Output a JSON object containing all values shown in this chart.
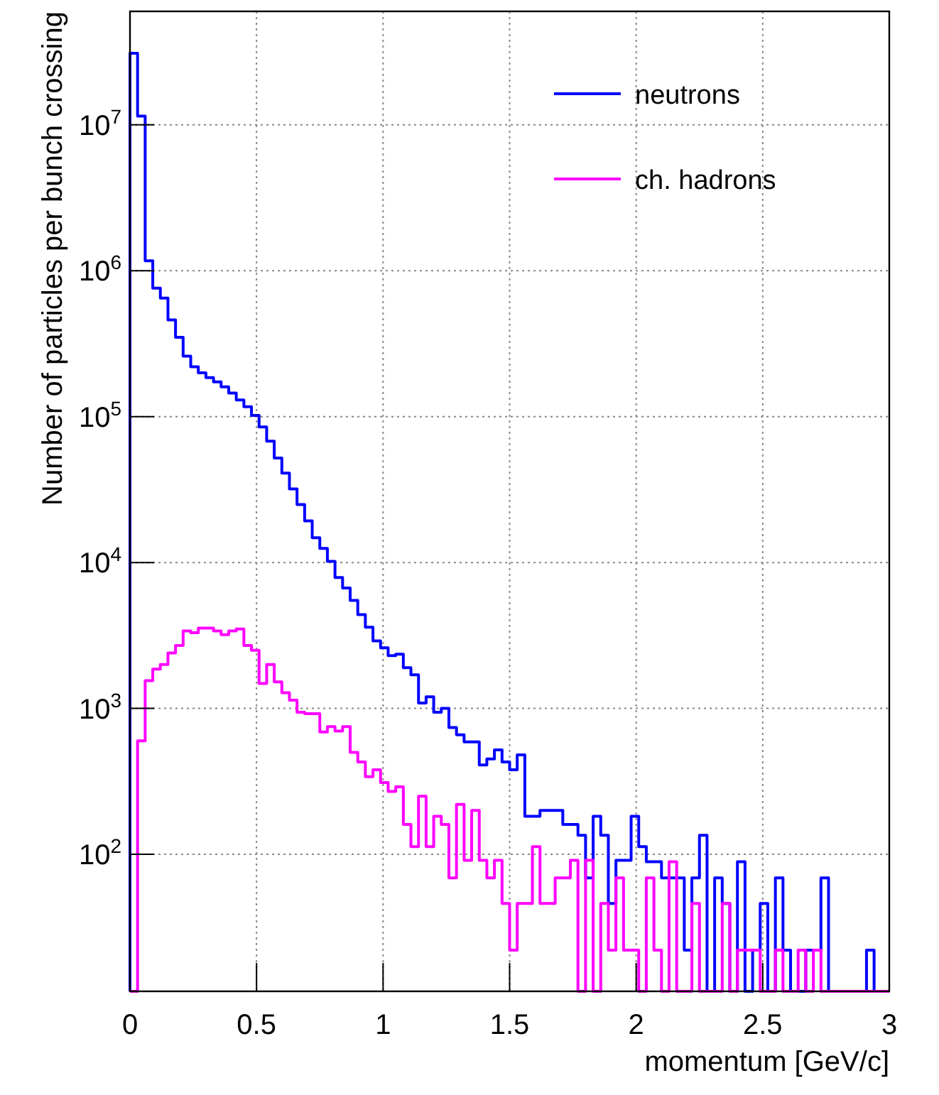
{
  "chart_data": {
    "type": "histogram",
    "xlabel": "momentum [GeV/c]",
    "ylabel": "Number of particles per bunch crossing",
    "bins": [
      0,
      0.03,
      0.06,
      0.09,
      0.12,
      0.15,
      0.18,
      0.21,
      0.24,
      0.27,
      0.3,
      0.33,
      0.36,
      0.39,
      0.42,
      0.45,
      0.48,
      0.51,
      0.54,
      0.57,
      0.6,
      0.63,
      0.66,
      0.69,
      0.72,
      0.75,
      0.78,
      0.81,
      0.84,
      0.87,
      0.9,
      0.93,
      0.96,
      0.99,
      1.02,
      1.05,
      1.08,
      1.11,
      1.14,
      1.17,
      1.2,
      1.23,
      1.26,
      1.29,
      1.32,
      1.35,
      1.38,
      1.41,
      1.44,
      1.47,
      1.5,
      1.53,
      1.56,
      1.59,
      1.62,
      1.65,
      1.68,
      1.71,
      1.74,
      1.77,
      1.8,
      1.83,
      1.86,
      1.89,
      1.92,
      1.95,
      1.98,
      2.01,
      2.04,
      2.07,
      2.1,
      2.13,
      2.16,
      2.19,
      2.22,
      2.25,
      2.28,
      2.31,
      2.34,
      2.37,
      2.4,
      2.43,
      2.46,
      2.49,
      2.52,
      2.55,
      2.58,
      2.61,
      2.64,
      2.67,
      2.7,
      2.73,
      2.76,
      2.79,
      2.82,
      2.85,
      2.88,
      2.91,
      2.94,
      2.97,
      3
    ],
    "series": [
      {
        "name": "neutrons",
        "color": "#0000ff",
        "values": [
          31000000,
          11500000,
          1170000,
          760000,
          650000,
          460000,
          350000,
          260000,
          220000,
          200000,
          185000,
          173000,
          160000,
          145000,
          130000,
          117000,
          102000,
          85000,
          68000,
          52000,
          41000,
          32000,
          25000,
          19300,
          14800,
          12500,
          10200,
          7900,
          6700,
          5500,
          4400,
          3600,
          2900,
          2600,
          2300,
          2350,
          1900,
          1700,
          1090,
          1200,
          940,
          1000,
          740,
          660,
          590,
          590,
          410,
          450,
          520,
          430,
          380,
          480,
          182,
          182,
          200,
          200,
          200,
          160,
          160,
          135,
          69,
          182,
          135,
          46,
          91,
          91,
          182,
          113,
          89,
          89,
          69,
          69,
          69,
          22,
          69,
          135,
          null,
          69,
          46,
          null,
          89,
          null,
          22,
          46,
          null,
          69,
          22,
          null,
          null,
          22,
          22,
          69,
          null,
          null,
          null,
          null,
          null,
          22,
          null,
          null
        ]
      },
      {
        "name": "ch. hadrons",
        "color": "#ff00ff",
        "values": [
          null,
          600,
          1550,
          1860,
          2000,
          2400,
          2700,
          3400,
          3300,
          3550,
          3550,
          3400,
          3200,
          3400,
          3500,
          2700,
          2500,
          1480,
          2000,
          1520,
          1280,
          1140,
          940,
          920,
          920,
          690,
          750,
          700,
          750,
          500,
          430,
          340,
          380,
          310,
          270,
          290,
          160,
          113,
          250,
          113,
          182,
          160,
          69,
          220,
          91,
          200,
          91,
          69,
          91,
          46,
          22,
          46,
          46,
          113,
          46,
          46,
          69,
          69,
          91,
          null,
          91,
          null,
          46,
          22,
          69,
          22,
          22,
          null,
          69,
          22,
          null,
          89,
          null,
          null,
          46,
          null,
          null,
          null,
          46,
          null,
          22,
          22,
          22,
          null,
          null,
          22,
          null,
          null,
          22,
          null,
          22,
          null,
          null,
          null,
          null,
          null,
          null,
          null,
          null,
          null
        ]
      }
    ],
    "xlim": [
      0,
      3
    ],
    "xticks": [
      0,
      0.5,
      1,
      1.5,
      2,
      2.5,
      3
    ],
    "log": true,
    "ylim": [
      11.5,
      60000000
    ],
    "yticks": [
      {
        "value": 100,
        "label": "10$^{2}$"
      },
      {
        "value": 1000,
        "label": "10$^{3}$"
      },
      {
        "value": 10000,
        "label": "10$^{4}$"
      },
      {
        "value": 100000,
        "label": "10$^{5}$"
      },
      {
        "value": 1000000,
        "label": "10$^{6}$"
      },
      {
        "value": 10000000,
        "label": "10$^{7}$"
      }
    ],
    "grid": true,
    "legend": "top right"
  }
}
